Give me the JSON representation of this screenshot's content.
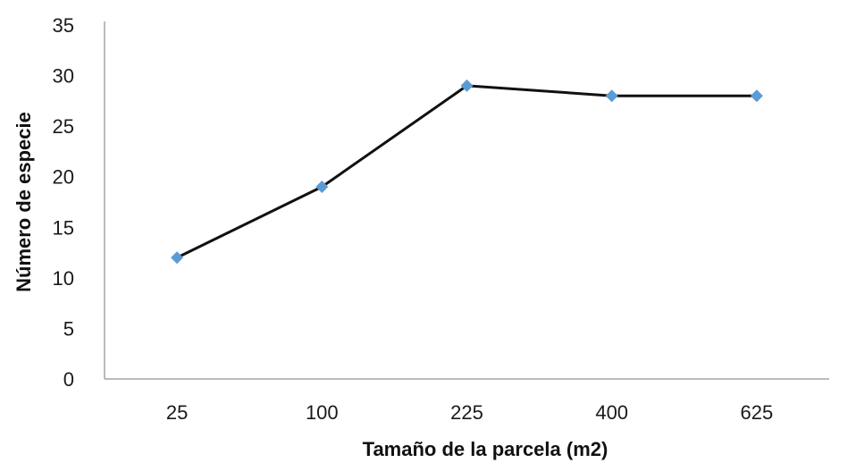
{
  "chart_data": {
    "type": "line",
    "title": "",
    "xlabel": "Tamaño de la parcela (m2)",
    "ylabel": "Número de especie",
    "categories": [
      "25",
      "100",
      "225",
      "400",
      "625"
    ],
    "series": [
      {
        "values": [
          12,
          19,
          29,
          28,
          28
        ]
      }
    ],
    "ylim": [
      0,
      35
    ],
    "yticks": [
      0,
      5,
      10,
      15,
      20,
      25,
      30,
      35
    ],
    "grid": false,
    "legend": "none",
    "line_color": "#111111",
    "marker_color": "#5b9bd5",
    "marker": "diamond"
  }
}
